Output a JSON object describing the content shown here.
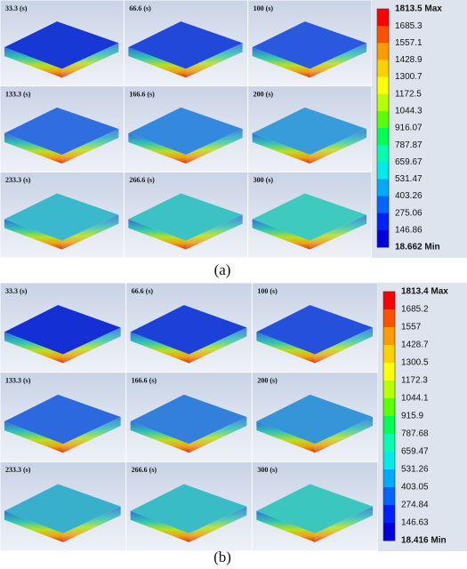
{
  "panels": [
    {
      "caption": "(a)",
      "times": [
        "33.3 (s)",
        "66.6 (s)",
        "100 (s)",
        "133.3 (s)",
        "166.6 (s)",
        "200 (s)",
        "233.3 (s)",
        "266.6 (s)",
        "300 (s)"
      ],
      "legend": [
        "1813.5 Max",
        "1685.3",
        "1557.1",
        "1428.9",
        "1300.7",
        "1172.5",
        "1044.3",
        "916.07",
        "787.87",
        "659.67",
        "531.47",
        "403.26",
        "275.06",
        "146.86",
        "18.662 Min"
      ]
    },
    {
      "caption": "(b)",
      "times": [
        "33.3 (s)",
        "66.6 (s)",
        "100 (s)",
        "133.3 (s)",
        "166.6 (s)",
        "200 (s)",
        "233.3 (s)",
        "266.6 (s)",
        "300 (s)"
      ],
      "legend": [
        "1813.4 Max",
        "1685.2",
        "1557",
        "1428.7",
        "1300.5",
        "1172.3",
        "1044.1",
        "915.9",
        "787.68",
        "659.47",
        "531.26",
        "403.05",
        "274.84",
        "146.63",
        "18.416 Min"
      ]
    }
  ]
}
